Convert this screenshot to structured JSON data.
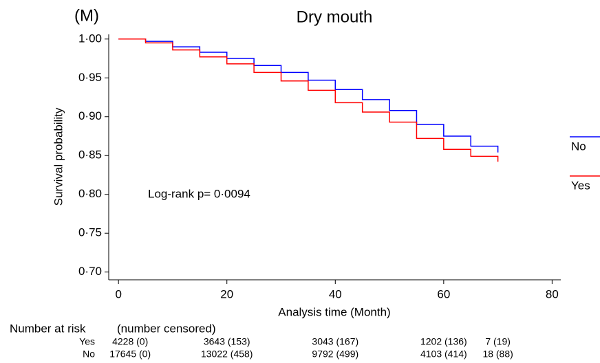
{
  "chart_data": {
    "type": "step",
    "panel_label": "(M)",
    "title": "Dry mouth",
    "x_label": "Analysis time (Month)",
    "y_label": "Survival probability",
    "annotation": "Log-rank p= 0·0094",
    "x": [
      0,
      5,
      10,
      15,
      20,
      25,
      30,
      35,
      40,
      45,
      50,
      55,
      60,
      65,
      70
    ],
    "series": [
      {
        "name": "No",
        "color": "#0000ff",
        "values": [
          1.0,
          0.997,
          0.99,
          0.983,
          0.975,
          0.966,
          0.957,
          0.947,
          0.935,
          0.922,
          0.908,
          0.89,
          0.875,
          0.862,
          0.854
        ]
      },
      {
        "name": "Yes",
        "color": "#ff0000",
        "values": [
          1.0,
          0.995,
          0.986,
          0.977,
          0.968,
          0.957,
          0.946,
          0.934,
          0.918,
          0.906,
          0.893,
          0.872,
          0.858,
          0.849,
          0.842
        ]
      }
    ],
    "xlim": [
      -1.8,
      81.6
    ],
    "ylim": [
      0.69,
      1.006
    ],
    "xticks": [
      0,
      20,
      40,
      60,
      80
    ],
    "yticks": [
      {
        "value": 0.7,
        "label": "0·70"
      },
      {
        "value": 0.75,
        "label": "0·75"
      },
      {
        "value": 0.8,
        "label": "0·80"
      },
      {
        "value": 0.85,
        "label": "0·85"
      },
      {
        "value": 0.9,
        "label": "0·90"
      },
      {
        "value": 0.95,
        "label": "0·95"
      },
      {
        "value": 1.0,
        "label": "1·00"
      }
    ],
    "legend": "right",
    "risk_table": {
      "title": "Number at risk",
      "subtitle": "(number censored)",
      "rows": [
        {
          "name": "Yes",
          "cells": [
            "4228 (0)",
            "3643 (153)",
            "3043 (167)",
            "1202 (136)",
            "7 (19)"
          ]
        },
        {
          "name": "No",
          "cells": [
            "17645 (0)",
            "13022 (458)",
            "9792 (499)",
            "4103 (414)",
            "18 (88)"
          ]
        }
      ]
    }
  }
}
